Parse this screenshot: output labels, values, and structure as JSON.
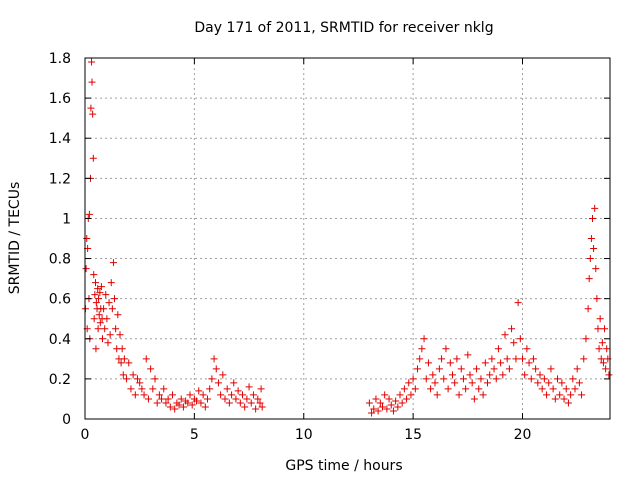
{
  "chart_data": {
    "type": "scatter",
    "title": "Day 171 of 2011, SRMTID for receiver nklg",
    "xlabel": "GPS time / hours",
    "ylabel": "SRMTID / TECUs",
    "xlim": [
      0,
      24
    ],
    "ylim": [
      0,
      1.8
    ],
    "xticks": [
      0,
      5,
      10,
      15,
      20
    ],
    "yticks": [
      0,
      0.2,
      0.4,
      0.6,
      0.8,
      1,
      1.2,
      1.4,
      1.6,
      1.8
    ],
    "xtick_labels": [
      "0",
      "5",
      "10",
      "15",
      "20"
    ],
    "ytick_labels": [
      "0",
      "0.2",
      "0.4",
      "0.6",
      "0.8",
      "1",
      "1.2",
      "1.4",
      "1.6",
      "1.8"
    ],
    "grid": true,
    "marker": "plus",
    "series": [
      {
        "name": "SRMTID",
        "color": "#e00000",
        "x": [
          0.02,
          0.05,
          0.08,
          0.1,
          0.12,
          0.15,
          0.18,
          0.2,
          0.22,
          0.25,
          0.27,
          0.3,
          0.32,
          0.35,
          0.38,
          0.4,
          0.42,
          0.45,
          0.48,
          0.5,
          0.52,
          0.55,
          0.58,
          0.6,
          0.62,
          0.65,
          0.68,
          0.7,
          0.72,
          0.75,
          0.78,
          0.8,
          0.85,
          0.9,
          0.95,
          1.0,
          1.05,
          1.1,
          1.15,
          1.2,
          1.25,
          1.3,
          1.35,
          1.4,
          1.45,
          1.5,
          1.55,
          1.6,
          1.65,
          1.7,
          1.75,
          1.8,
          1.9,
          2.0,
          2.1,
          2.2,
          2.3,
          2.4,
          2.5,
          2.6,
          2.7,
          2.8,
          2.9,
          3.0,
          3.1,
          3.2,
          3.3,
          3.4,
          3.5,
          3.6,
          3.7,
          3.8,
          3.9,
          4.0,
          4.1,
          4.2,
          4.3,
          4.4,
          4.5,
          4.6,
          4.7,
          4.8,
          4.9,
          5.0,
          5.1,
          5.2,
          5.3,
          5.4,
          5.5,
          5.6,
          5.7,
          5.8,
          5.9,
          6.0,
          6.1,
          6.2,
          6.3,
          6.4,
          6.5,
          6.6,
          6.7,
          6.8,
          6.9,
          7.0,
          7.1,
          7.2,
          7.3,
          7.4,
          7.5,
          7.6,
          7.7,
          7.8,
          7.9,
          8.0,
          8.05,
          8.1,
          13.0,
          13.1,
          13.2,
          13.3,
          13.4,
          13.5,
          13.6,
          13.7,
          13.8,
          13.9,
          14.0,
          14.1,
          14.2,
          14.3,
          14.4,
          14.5,
          14.6,
          14.7,
          14.8,
          14.9,
          15.0,
          15.1,
          15.2,
          15.3,
          15.4,
          15.5,
          15.6,
          15.7,
          15.8,
          15.9,
          16.0,
          16.1,
          16.2,
          16.3,
          16.4,
          16.5,
          16.6,
          16.7,
          16.8,
          16.9,
          17.0,
          17.1,
          17.2,
          17.3,
          17.4,
          17.5,
          17.6,
          17.7,
          17.8,
          17.9,
          18.0,
          18.1,
          18.2,
          18.3,
          18.4,
          18.5,
          18.6,
          18.7,
          18.8,
          18.9,
          19.0,
          19.1,
          19.2,
          19.3,
          19.4,
          19.5,
          19.6,
          19.7,
          19.8,
          19.9,
          20.0,
          20.1,
          20.2,
          20.3,
          20.4,
          20.5,
          20.6,
          20.7,
          20.8,
          20.9,
          21.0,
          21.1,
          21.2,
          21.3,
          21.4,
          21.5,
          21.6,
          21.7,
          21.8,
          21.9,
          22.0,
          22.1,
          22.2,
          22.3,
          22.4,
          22.5,
          22.6,
          22.7,
          22.8,
          22.9,
          23.0,
          23.05,
          23.1,
          23.15,
          23.2,
          23.25,
          23.3,
          23.35,
          23.4,
          23.45,
          23.5,
          23.55,
          23.6,
          23.65,
          23.7,
          23.75,
          23.8,
          23.85,
          23.9,
          23.95
        ],
        "y": [
          0.55,
          0.75,
          0.9,
          0.45,
          0.85,
          1.0,
          0.6,
          1.02,
          0.4,
          1.2,
          1.55,
          1.78,
          1.68,
          1.52,
          1.3,
          0.72,
          0.5,
          0.62,
          0.68,
          0.35,
          0.58,
          0.55,
          0.65,
          0.45,
          0.6,
          0.52,
          0.63,
          0.48,
          0.55,
          0.66,
          0.5,
          0.4,
          0.55,
          0.45,
          0.62,
          0.5,
          0.38,
          0.58,
          0.42,
          0.68,
          0.55,
          0.78,
          0.6,
          0.45,
          0.35,
          0.52,
          0.3,
          0.42,
          0.28,
          0.35,
          0.22,
          0.3,
          0.2,
          0.28,
          0.15,
          0.22,
          0.12,
          0.2,
          0.18,
          0.15,
          0.12,
          0.3,
          0.1,
          0.25,
          0.15,
          0.2,
          0.08,
          0.12,
          0.1,
          0.15,
          0.08,
          0.1,
          0.06,
          0.12,
          0.05,
          0.08,
          0.07,
          0.1,
          0.06,
          0.09,
          0.08,
          0.12,
          0.07,
          0.1,
          0.09,
          0.14,
          0.08,
          0.12,
          0.06,
          0.1,
          0.15,
          0.2,
          0.3,
          0.25,
          0.18,
          0.12,
          0.22,
          0.1,
          0.15,
          0.08,
          0.12,
          0.18,
          0.1,
          0.14,
          0.08,
          0.12,
          0.06,
          0.1,
          0.16,
          0.08,
          0.12,
          0.05,
          0.1,
          0.08,
          0.15,
          0.06,
          0.08,
          0.03,
          0.05,
          0.1,
          0.04,
          0.08,
          0.06,
          0.12,
          0.05,
          0.1,
          0.07,
          0.04,
          0.09,
          0.06,
          0.12,
          0.08,
          0.15,
          0.1,
          0.18,
          0.12,
          0.2,
          0.15,
          0.25,
          0.3,
          0.35,
          0.4,
          0.2,
          0.28,
          0.15,
          0.22,
          0.18,
          0.12,
          0.25,
          0.3,
          0.2,
          0.35,
          0.15,
          0.28,
          0.22,
          0.18,
          0.3,
          0.12,
          0.25,
          0.2,
          0.15,
          0.32,
          0.22,
          0.18,
          0.1,
          0.25,
          0.15,
          0.2,
          0.12,
          0.28,
          0.18,
          0.22,
          0.3,
          0.25,
          0.2,
          0.35,
          0.28,
          0.22,
          0.42,
          0.3,
          0.25,
          0.45,
          0.38,
          0.3,
          0.58,
          0.4,
          0.3,
          0.22,
          0.35,
          0.28,
          0.2,
          0.3,
          0.25,
          0.18,
          0.22,
          0.15,
          0.2,
          0.12,
          0.18,
          0.25,
          0.15,
          0.1,
          0.2,
          0.12,
          0.18,
          0.1,
          0.15,
          0.08,
          0.12,
          0.2,
          0.15,
          0.25,
          0.18,
          0.12,
          0.3,
          0.4,
          0.55,
          0.7,
          0.8,
          0.9,
          1.0,
          0.85,
          1.05,
          0.75,
          0.6,
          0.45,
          0.35,
          0.5,
          0.3,
          0.38,
          0.28,
          0.45,
          0.25,
          0.35,
          0.3,
          0.22
        ]
      }
    ]
  }
}
